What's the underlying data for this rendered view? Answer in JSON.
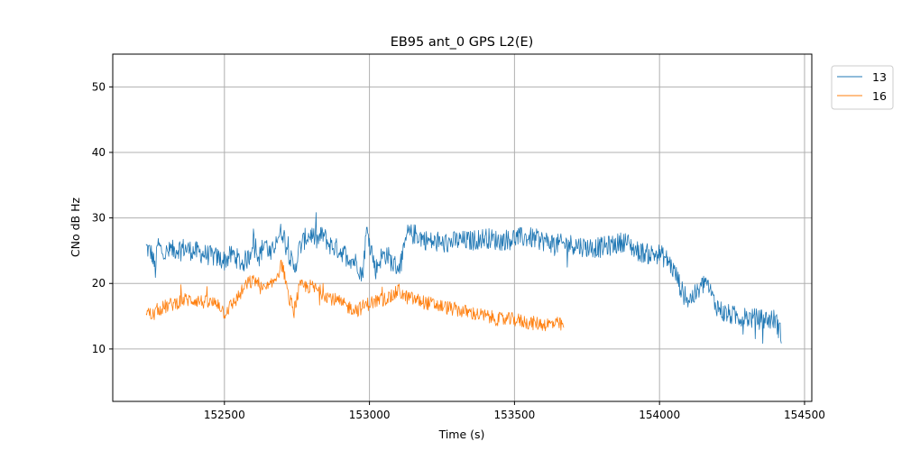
{
  "chart_data": {
    "type": "line",
    "title": "EB95 ant_0 GPS L2(E)",
    "xlabel": "Time (s)",
    "ylabel": "CNo dB Hz",
    "xlim": [
      152115,
      154525
    ],
    "ylim": [
      2,
      55
    ],
    "xticks": [
      152500,
      153000,
      153500,
      154000,
      154500
    ],
    "xtick_labels": [
      "152500",
      "153000",
      "153500",
      "154000",
      "154500"
    ],
    "yticks": [
      10,
      20,
      30,
      40,
      50
    ],
    "ytick_labels": [
      "10",
      "20",
      "30",
      "40",
      "50"
    ],
    "grid": true,
    "legend_position": "upper right, outside plot",
    "series": [
      {
        "name": "13",
        "color": "#1f77b4",
        "anchors": [
          [
            152230,
            25.5
          ],
          [
            152250,
            24.5
          ],
          [
            152262,
            22.0
          ],
          [
            152270,
            26.0
          ],
          [
            152290,
            24.5
          ],
          [
            152320,
            25.0
          ],
          [
            152350,
            25.5
          ],
          [
            152390,
            25.0
          ],
          [
            152430,
            24.5
          ],
          [
            152470,
            24.0
          ],
          [
            152500,
            23.5
          ],
          [
            152530,
            24.5
          ],
          [
            152560,
            23.0
          ],
          [
            152585,
            24.0
          ],
          [
            152600,
            27.0
          ],
          [
            152620,
            24.0
          ],
          [
            152640,
            26.5
          ],
          [
            152660,
            24.0
          ],
          [
            152680,
            27.0
          ],
          [
            152700,
            28.0
          ],
          [
            152720,
            25.0
          ],
          [
            152740,
            22.0
          ],
          [
            152760,
            25.5
          ],
          [
            152780,
            27.0
          ],
          [
            152800,
            27.5
          ],
          [
            152820,
            26.5
          ],
          [
            152840,
            27.5
          ],
          [
            152860,
            26.0
          ],
          [
            152880,
            25.5
          ],
          [
            152900,
            25.0
          ],
          [
            152930,
            24.0
          ],
          [
            152960,
            23.0
          ],
          [
            152975,
            21.0
          ],
          [
            152990,
            28.0
          ],
          [
            153000,
            27.0
          ],
          [
            153020,
            22.0
          ],
          [
            153040,
            24.0
          ],
          [
            153060,
            24.5
          ],
          [
            153080,
            23.0
          ],
          [
            153100,
            22.5
          ],
          [
            153115,
            24.0
          ],
          [
            153130,
            27.5
          ],
          [
            153160,
            27.5
          ],
          [
            153200,
            26.5
          ],
          [
            153250,
            26.0
          ],
          [
            153300,
            26.5
          ],
          [
            153350,
            26.5
          ],
          [
            153400,
            27.0
          ],
          [
            153450,
            26.5
          ],
          [
            153500,
            27.0
          ],
          [
            153550,
            27.0
          ],
          [
            153600,
            26.5
          ],
          [
            153650,
            26.0
          ],
          [
            153700,
            26.0
          ],
          [
            153750,
            25.5
          ],
          [
            153800,
            25.5
          ],
          [
            153850,
            26.0
          ],
          [
            153880,
            26.5
          ],
          [
            153920,
            25.0
          ],
          [
            153960,
            24.5
          ],
          [
            154000,
            24.5
          ],
          [
            154030,
            23.5
          ],
          [
            154060,
            21.0
          ],
          [
            154080,
            18.5
          ],
          [
            154100,
            17.5
          ],
          [
            154130,
            18.5
          ],
          [
            154160,
            20.5
          ],
          [
            154190,
            17.0
          ],
          [
            154220,
            15.5
          ],
          [
            154260,
            15.0
          ],
          [
            154300,
            14.8
          ],
          [
            154350,
            14.5
          ],
          [
            154400,
            14.5
          ],
          [
            154420,
            12.0
          ]
        ]
      },
      {
        "name": "16",
        "color": "#ff7f0e",
        "anchors": [
          [
            152230,
            16.0
          ],
          [
            152250,
            15.0
          ],
          [
            152270,
            16.0
          ],
          [
            152300,
            16.5
          ],
          [
            152330,
            17.0
          ],
          [
            152360,
            17.5
          ],
          [
            152400,
            17.5
          ],
          [
            152440,
            17.0
          ],
          [
            152480,
            17.0
          ],
          [
            152500,
            15.5
          ],
          [
            152540,
            17.5
          ],
          [
            152580,
            20.0
          ],
          [
            152610,
            20.5
          ],
          [
            152630,
            19.0
          ],
          [
            152660,
            19.5
          ],
          [
            152700,
            23.0
          ],
          [
            152720,
            18.0
          ],
          [
            152740,
            16.0
          ],
          [
            152760,
            19.5
          ],
          [
            152800,
            19.5
          ],
          [
            152840,
            18.5
          ],
          [
            152880,
            17.5
          ],
          [
            152920,
            16.5
          ],
          [
            152960,
            16.0
          ],
          [
            153000,
            17.0
          ],
          [
            153040,
            17.5
          ],
          [
            153080,
            18.0
          ],
          [
            153100,
            19.0
          ],
          [
            153120,
            18.0
          ],
          [
            153160,
            17.5
          ],
          [
            153200,
            17.0
          ],
          [
            153250,
            16.5
          ],
          [
            153300,
            16.0
          ],
          [
            153350,
            15.5
          ],
          [
            153400,
            15.0
          ],
          [
            153450,
            14.5
          ],
          [
            153500,
            14.5
          ],
          [
            153550,
            14.0
          ],
          [
            153600,
            13.8
          ],
          [
            153650,
            13.8
          ],
          [
            153670,
            13.5
          ]
        ]
      }
    ]
  }
}
